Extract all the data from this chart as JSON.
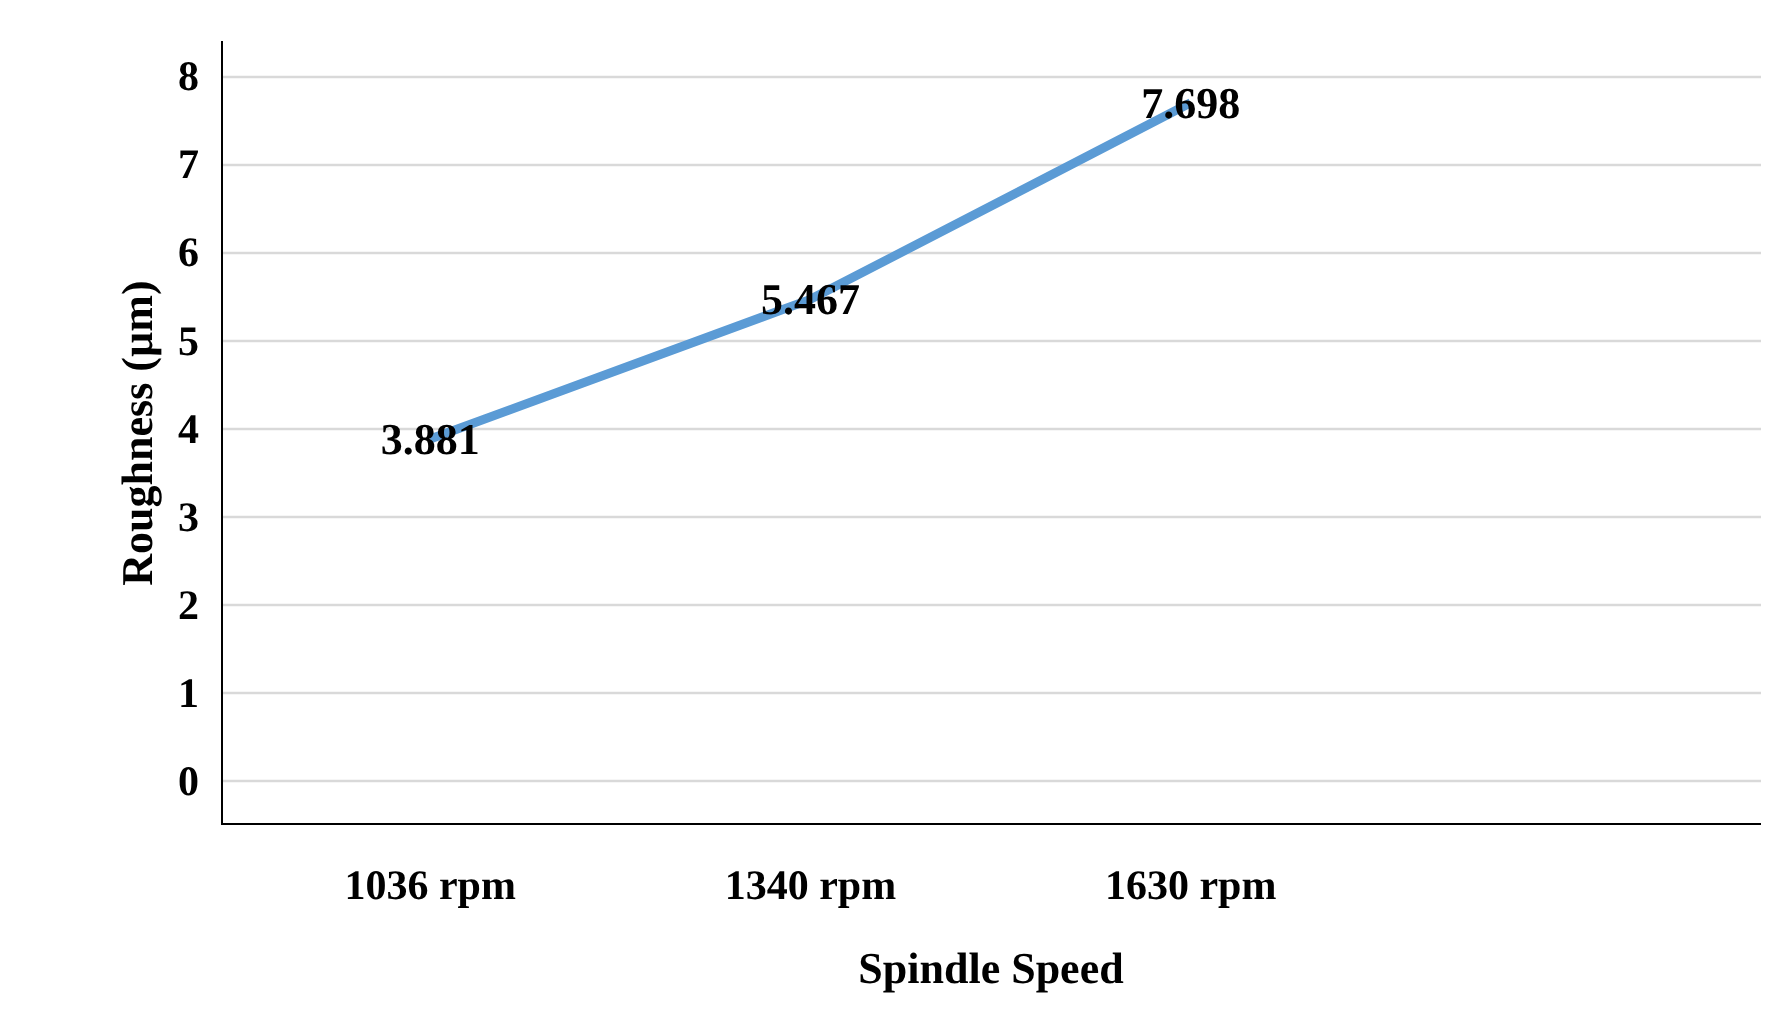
{
  "chart_data": {
    "type": "line",
    "xlabel": "Spindle Speed",
    "ylabel": "Roughness (µm)",
    "categories": [
      "1036 rpm",
      "1340 rpm",
      "1630 rpm"
    ],
    "series": [
      {
        "color": "#5b9bd5",
        "values": [
          3.881,
          5.467,
          7.698
        ]
      }
    ],
    "ylim": [
      -0.5,
      8.4
    ],
    "yticks": [
      0,
      1,
      2,
      3,
      4,
      5,
      6,
      7,
      8
    ],
    "grid": "y",
    "data_labels": true,
    "marker": "none",
    "line_style": "solid"
  }
}
